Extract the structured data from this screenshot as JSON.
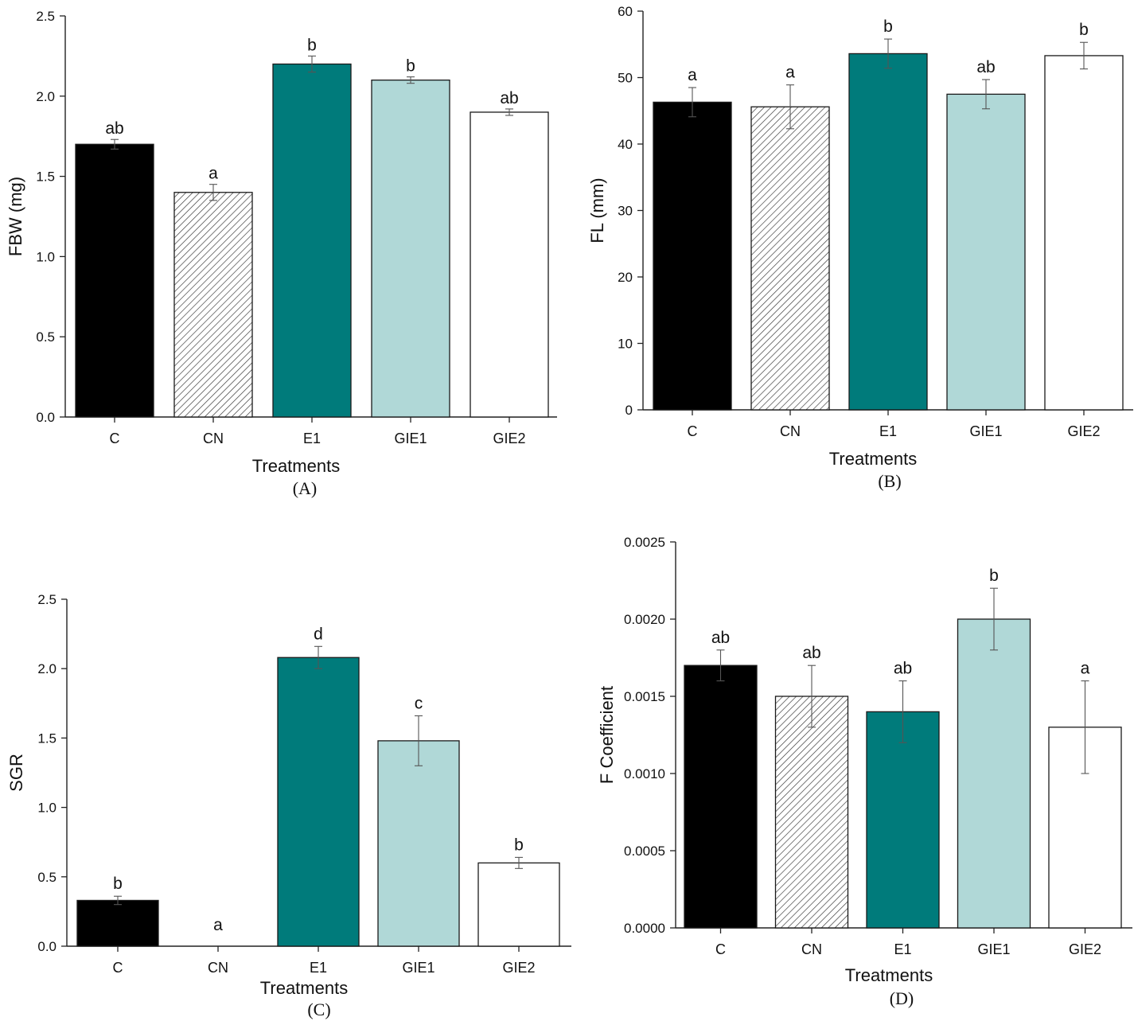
{
  "figure": {
    "categories": [
      "C",
      "CN",
      "E1",
      "GIE1",
      "GIE2"
    ],
    "colors": {
      "C": "#000000",
      "CN": "hatch",
      "E1": "#007b7b",
      "GIE1": "#b0d8d7",
      "GIE2": "#ffffff"
    }
  },
  "chart_data": [
    {
      "type": "bar",
      "panel": "(A)",
      "categories": [
        "C",
        "CN",
        "E1",
        "GIE1",
        "GIE2"
      ],
      "values": [
        1.7,
        1.4,
        2.2,
        2.1,
        1.9
      ],
      "errors": [
        0.03,
        0.05,
        0.05,
        0.02,
        0.02
      ],
      "letters": [
        "ab",
        "a",
        "b",
        "b",
        "ab"
      ],
      "xlabel": "Treatments",
      "ylabel": "FBW (mg)",
      "ylim": [
        0,
        2.5
      ],
      "yticks": [
        0,
        0.5,
        1,
        1.5,
        2,
        2.5
      ],
      "ytick_labels": [
        "0.0",
        "0.5",
        "1.0",
        "1.5",
        "2.0",
        "2.5"
      ]
    },
    {
      "type": "bar",
      "panel": "(B)",
      "categories": [
        "C",
        "CN",
        "E1",
        "GIE1",
        "GIE2"
      ],
      "values": [
        46.3,
        45.6,
        53.6,
        47.5,
        53.3
      ],
      "errors": [
        2.2,
        3.3,
        2.2,
        2.2,
        2.0
      ],
      "letters": [
        "a",
        "a",
        "b",
        "ab",
        "b"
      ],
      "xlabel": "Treatments",
      "ylabel": "FL (mm)",
      "ylim": [
        0,
        60
      ],
      "yticks": [
        0,
        10,
        20,
        30,
        40,
        50,
        60
      ],
      "ytick_labels": [
        "0",
        "10",
        "20",
        "30",
        "40",
        "50",
        "60"
      ]
    },
    {
      "type": "bar",
      "panel": "(C)",
      "categories": [
        "C",
        "CN",
        "E1",
        "GIE1",
        "GIE2"
      ],
      "values": [
        0.33,
        0,
        2.08,
        1.48,
        0.6
      ],
      "errors": [
        0.03,
        0,
        0.08,
        0.18,
        0.04
      ],
      "letters": [
        "b",
        "a",
        "d",
        "c",
        "b"
      ],
      "xlabel": "Treatments",
      "ylabel": "SGR",
      "ylim": [
        0,
        2.5
      ],
      "yticks": [
        0,
        0.5,
        1,
        1.5,
        2,
        2.5
      ],
      "ytick_labels": [
        "0.0",
        "0.5",
        "1.0",
        "1.5",
        "2.0",
        "2.5"
      ]
    },
    {
      "type": "bar",
      "panel": "(D)",
      "categories": [
        "C",
        "CN",
        "E1",
        "GIE1",
        "GIE2"
      ],
      "values": [
        0.0017,
        0.0015,
        0.0014,
        0.002,
        0.0013
      ],
      "errors": [
        0.0001,
        0.0002,
        0.0002,
        0.0002,
        0.0003
      ],
      "letters": [
        "ab",
        "ab",
        "ab",
        "b",
        "a"
      ],
      "xlabel": "Treatments",
      "ylabel": "F Coefficient",
      "ylim": [
        0,
        0.0025
      ],
      "yticks": [
        0,
        0.0005,
        0.001,
        0.0015,
        0.002,
        0.0025
      ],
      "ytick_labels": [
        "0.0000",
        "0.0005",
        "0.0010",
        "0.0015",
        "0.0020",
        "0.0025"
      ]
    }
  ]
}
